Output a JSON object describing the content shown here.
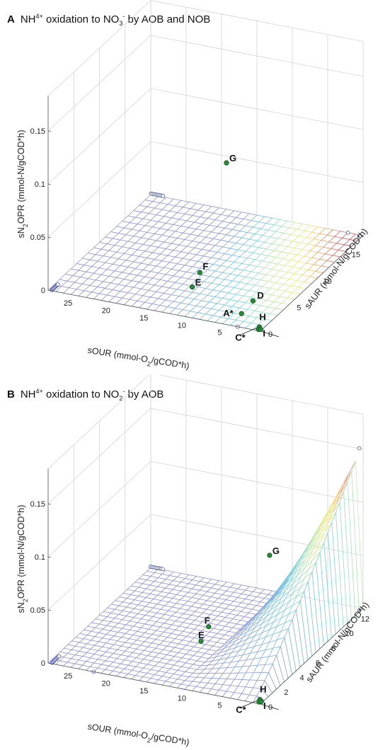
{
  "chart_data": [
    {
      "type": "surface3d",
      "panel_label": "A",
      "title_parts": {
        "pre": "NH",
        "sup1": "4",
        "sup1b": "+",
        "mid": " oxidation to NO",
        "sub2": "3",
        "sup2": "-",
        "post": " by AOB and NOB"
      },
      "zlabel": "sN2OPR (mmol-N/gCOD*h)",
      "xlabel": "sOUR (mmol-O2/gCOD*h)",
      "ylabel": "sAUR (mmol-N/gCOD*h)",
      "xlim": [
        0,
        28
      ],
      "ylim": [
        0,
        18
      ],
      "zlim": [
        0,
        0.15
      ],
      "z_ticks": [
        0,
        0.05,
        0.1,
        0.15
      ],
      "z_tick_labels": [
        "0",
        "0.05",
        "0.1",
        "0.15"
      ],
      "x_ticks": [
        5,
        10,
        15,
        20,
        25
      ],
      "x_tick_labels": [
        "5",
        "10",
        "15",
        "20",
        "25"
      ],
      "y_ticks": [
        0,
        5,
        10,
        15
      ],
      "y_tick_labels": [
        "0",
        "5",
        "10",
        "15"
      ],
      "grid": true,
      "points": [
        {
          "label": "G",
          "sOUR": 12,
          "sAUR": 10,
          "sN2OPR": 0.092
        },
        {
          "label": "F",
          "sOUR": 11,
          "sAUR": 4,
          "sN2OPR": 0.02
        },
        {
          "label": "E",
          "sOUR": 12,
          "sAUR": 4,
          "sN2OPR": 0.005
        },
        {
          "label": "D",
          "sOUR": 4,
          "sAUR": 4,
          "sN2OPR": 0.003
        },
        {
          "label": "A*",
          "sOUR": 4,
          "sAUR": 2,
          "sN2OPR": 0.001
        },
        {
          "label": "H",
          "sOUR": 0.6,
          "sAUR": 0.6,
          "sN2OPR": 0
        },
        {
          "label": "I",
          "sOUR": 0.4,
          "sAUR": 0.2,
          "sN2OPR": 0
        },
        {
          "label": "C*",
          "sOUR": 0.2,
          "sAUR": 0.3,
          "sN2OPR": 0
        }
      ]
    },
    {
      "type": "surface3d",
      "panel_label": "B",
      "title_parts": {
        "pre": "NH",
        "sup1": "4",
        "sup1b": "+",
        "mid": " oxidation to NO",
        "sub2": "2",
        "sup2": "-",
        "post": " by AOB"
      },
      "zlabel": "sN2OPR (mmol-N/gCOD*h)",
      "xlabel": "sOUR (mmol-O2/gCOD*h)",
      "ylabel": "sAUR (mmol-N/gCOD*h)",
      "xlim": [
        0,
        28
      ],
      "ylim": [
        0,
        13
      ],
      "zlim": [
        0,
        0.15
      ],
      "z_ticks": [
        0,
        0.05,
        0.1,
        0.15
      ],
      "z_tick_labels": [
        "0",
        "0.05",
        "0.1",
        "0.15"
      ],
      "x_ticks": [
        5,
        10,
        15,
        20,
        25
      ],
      "x_tick_labels": [
        "5",
        "10",
        "15",
        "20",
        "25"
      ],
      "y_ticks": [
        0,
        2,
        4,
        6,
        8,
        10,
        12
      ],
      "y_tick_labels": [
        "0",
        "2",
        "4",
        "6",
        "8",
        "10",
        "12"
      ],
      "grid": true,
      "points": [
        {
          "label": "G",
          "sOUR": 4,
          "sAUR": 5,
          "sN2OPR": 0.1
        },
        {
          "label": "F",
          "sOUR": 11,
          "sAUR": 4,
          "sN2OPR": 0.03
        },
        {
          "label": "E",
          "sOUR": 12,
          "sAUR": 4,
          "sN2OPR": 0.015
        },
        {
          "label": "H",
          "sOUR": 0.6,
          "sAUR": 0.5,
          "sN2OPR": 0
        },
        {
          "label": "I",
          "sOUR": 0.4,
          "sAUR": 0.2,
          "sN2OPR": 0
        },
        {
          "label": "C*",
          "sOUR": 0.2,
          "sAUR": 0.3,
          "sN2OPR": 0
        }
      ]
    }
  ]
}
